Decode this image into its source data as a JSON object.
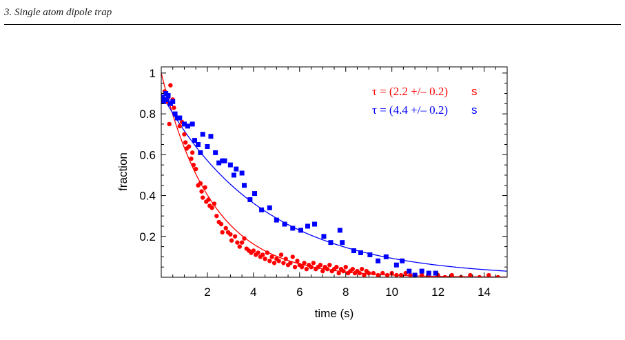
{
  "page": {
    "running_header": "3.  Single atom dipole trap"
  },
  "chart_data": {
    "type": "scatter",
    "xlabel": "time (s)",
    "ylabel": "fraction",
    "xlim": [
      0,
      15
    ],
    "ylim": [
      0,
      1.03
    ],
    "x_ticks": [
      2,
      4,
      6,
      8,
      10,
      12,
      14
    ],
    "x_tick_labels": [
      "2",
      "4",
      "6",
      "8",
      "10",
      "12",
      "14"
    ],
    "y_ticks": [
      0.2,
      0.4,
      0.6,
      0.8,
      1.0
    ],
    "y_tick_labels": [
      "0.2",
      "0.4",
      "0.6",
      "0.8",
      "1"
    ],
    "grid": false,
    "legend_position": "top-right",
    "annotations": [
      {
        "text_tau": "τ = (2.2 +/– 0.2)",
        "text_unit": "s",
        "color": "#ff0000"
      },
      {
        "text_tau": "τ = (4.4 +/– 0.2)",
        "text_unit": "s",
        "color": "#0000ff"
      }
    ],
    "series": [
      {
        "marker": "circle",
        "color": "#ff0000",
        "fit": {
          "type": "exponential",
          "amplitude": 1.0,
          "tau": 2.2
        },
        "points": [
          [
            0.15,
            0.91
          ],
          [
            0.25,
            0.86
          ],
          [
            0.3,
            0.88
          ],
          [
            0.35,
            0.75
          ],
          [
            0.4,
            0.94
          ],
          [
            0.5,
            0.87
          ],
          [
            0.55,
            0.83
          ],
          [
            0.6,
            0.8
          ],
          [
            0.7,
            0.78
          ],
          [
            0.8,
            0.74
          ],
          [
            0.9,
            0.76
          ],
          [
            1.0,
            0.7
          ],
          [
            1.05,
            0.66
          ],
          [
            1.1,
            0.63
          ],
          [
            1.2,
            0.64
          ],
          [
            1.3,
            0.58
          ],
          [
            1.35,
            0.61
          ],
          [
            1.4,
            0.55
          ],
          [
            1.5,
            0.53
          ],
          [
            1.6,
            0.45
          ],
          [
            1.7,
            0.46
          ],
          [
            1.75,
            0.42
          ],
          [
            1.8,
            0.39
          ],
          [
            1.9,
            0.44
          ],
          [
            1.95,
            0.37
          ],
          [
            2.05,
            0.38
          ],
          [
            2.1,
            0.35
          ],
          [
            2.2,
            0.34
          ],
          [
            2.3,
            0.36
          ],
          [
            2.4,
            0.3
          ],
          [
            2.5,
            0.27
          ],
          [
            2.6,
            0.26
          ],
          [
            2.65,
            0.22
          ],
          [
            2.8,
            0.24
          ],
          [
            2.9,
            0.22
          ],
          [
            3.0,
            0.21
          ],
          [
            3.05,
            0.18
          ],
          [
            3.2,
            0.2
          ],
          [
            3.3,
            0.17
          ],
          [
            3.4,
            0.15
          ],
          [
            3.5,
            0.17
          ],
          [
            3.6,
            0.19
          ],
          [
            3.7,
            0.14
          ],
          [
            3.8,
            0.13
          ],
          [
            3.9,
            0.12
          ],
          [
            4.0,
            0.13
          ],
          [
            4.1,
            0.11
          ],
          [
            4.2,
            0.12
          ],
          [
            4.3,
            0.1
          ],
          [
            4.4,
            0.11
          ],
          [
            4.5,
            0.09
          ],
          [
            4.6,
            0.12
          ],
          [
            4.7,
            0.08
          ],
          [
            4.8,
            0.1
          ],
          [
            4.9,
            0.07
          ],
          [
            5.0,
            0.09
          ],
          [
            5.1,
            0.08
          ],
          [
            5.2,
            0.11
          ],
          [
            5.3,
            0.07
          ],
          [
            5.4,
            0.09
          ],
          [
            5.5,
            0.06
          ],
          [
            5.6,
            0.07
          ],
          [
            5.7,
            0.1
          ],
          [
            5.8,
            0.05
          ],
          [
            5.9,
            0.08
          ],
          [
            6.0,
            0.06
          ],
          [
            6.1,
            0.05
          ],
          [
            6.2,
            0.07
          ],
          [
            6.3,
            0.04
          ],
          [
            6.4,
            0.06
          ],
          [
            6.5,
            0.05
          ],
          [
            6.6,
            0.07
          ],
          [
            6.7,
            0.04
          ],
          [
            6.8,
            0.05
          ],
          [
            6.9,
            0.06
          ],
          [
            7.0,
            0.03
          ],
          [
            7.1,
            0.05
          ],
          [
            7.2,
            0.04
          ],
          [
            7.3,
            0.06
          ],
          [
            7.4,
            0.03
          ],
          [
            7.5,
            0.04
          ],
          [
            7.6,
            0.05
          ],
          [
            7.7,
            0.02
          ],
          [
            7.8,
            0.04
          ],
          [
            7.9,
            0.03
          ],
          [
            8.0,
            0.05
          ],
          [
            8.1,
            0.02
          ],
          [
            8.2,
            0.03
          ],
          [
            8.3,
            0.04
          ],
          [
            8.4,
            0.02
          ],
          [
            8.5,
            0.03
          ],
          [
            8.6,
            0.02
          ],
          [
            8.7,
            0.04
          ],
          [
            8.8,
            0.01
          ],
          [
            8.9,
            0.03
          ],
          [
            9.0,
            0.02
          ],
          [
            9.2,
            0.02
          ],
          [
            9.4,
            0.01
          ],
          [
            9.6,
            0.02
          ],
          [
            9.8,
            0.01
          ],
          [
            10.0,
            0.02
          ],
          [
            10.2,
            0.01
          ],
          [
            10.4,
            0.01
          ],
          [
            10.6,
            0.02
          ],
          [
            10.8,
            0.01
          ],
          [
            11.0,
            0.0
          ],
          [
            11.3,
            0.01
          ],
          [
            11.6,
            0.0
          ],
          [
            12.0,
            0.01
          ],
          [
            12.3,
            0.0
          ],
          [
            12.6,
            0.01
          ],
          [
            13.0,
            0.0
          ],
          [
            13.4,
            0.01
          ],
          [
            13.8,
            0.0
          ],
          [
            14.2,
            0.01
          ],
          [
            14.6,
            0.0
          ]
        ]
      },
      {
        "marker": "square",
        "color": "#0000ff",
        "fit": {
          "type": "exponential",
          "amplitude": 0.9,
          "tau": 4.4
        },
        "points": [
          [
            0.05,
            0.88
          ],
          [
            0.1,
            0.86
          ],
          [
            0.15,
            0.87
          ],
          [
            0.2,
            0.9
          ],
          [
            0.25,
            0.87
          ],
          [
            0.3,
            0.89
          ],
          [
            0.4,
            0.85
          ],
          [
            0.5,
            0.86
          ],
          [
            0.6,
            0.8
          ],
          [
            0.7,
            0.78
          ],
          [
            0.8,
            0.78
          ],
          [
            1.0,
            0.75
          ],
          [
            1.15,
            0.74
          ],
          [
            1.35,
            0.75
          ],
          [
            1.45,
            0.67
          ],
          [
            1.6,
            0.65
          ],
          [
            1.7,
            0.61
          ],
          [
            1.8,
            0.7
          ],
          [
            2.0,
            0.64
          ],
          [
            2.15,
            0.69
          ],
          [
            2.35,
            0.61
          ],
          [
            2.5,
            0.56
          ],
          [
            2.65,
            0.57
          ],
          [
            2.75,
            0.57
          ],
          [
            3.0,
            0.55
          ],
          [
            3.15,
            0.5
          ],
          [
            3.25,
            0.53
          ],
          [
            3.5,
            0.51
          ],
          [
            3.6,
            0.45
          ],
          [
            3.85,
            0.38
          ],
          [
            4.05,
            0.41
          ],
          [
            4.35,
            0.33
          ],
          [
            4.7,
            0.34
          ],
          [
            5.0,
            0.28
          ],
          [
            5.35,
            0.26
          ],
          [
            5.7,
            0.24
          ],
          [
            6.05,
            0.23
          ],
          [
            6.35,
            0.25
          ],
          [
            6.65,
            0.26
          ],
          [
            7.05,
            0.2
          ],
          [
            7.35,
            0.17
          ],
          [
            7.75,
            0.23
          ],
          [
            7.85,
            0.17
          ],
          [
            8.35,
            0.13
          ],
          [
            8.65,
            0.12
          ],
          [
            9.05,
            0.11
          ],
          [
            9.4,
            0.08
          ],
          [
            9.75,
            0.1
          ],
          [
            10.2,
            0.06
          ],
          [
            10.45,
            0.08
          ],
          [
            10.75,
            0.03
          ],
          [
            11.0,
            0.01
          ],
          [
            11.3,
            0.03
          ],
          [
            11.6,
            0.02
          ],
          [
            11.9,
            0.02
          ]
        ]
      }
    ]
  }
}
